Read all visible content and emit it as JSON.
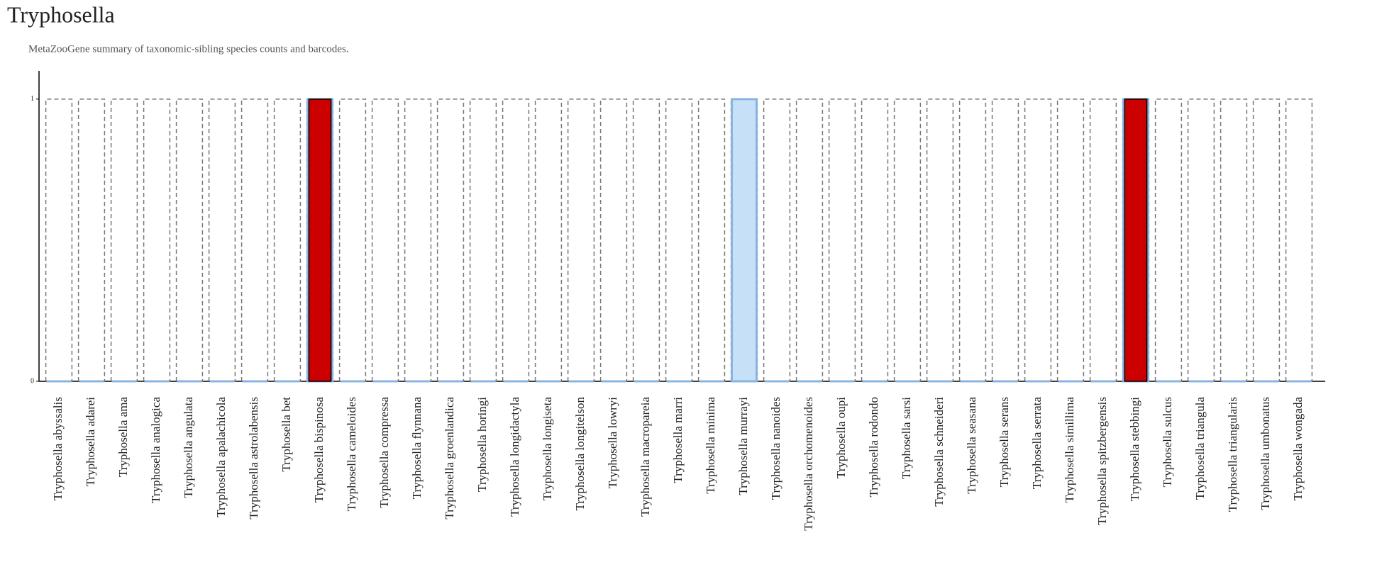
{
  "chart_data": {
    "type": "bar",
    "title": "Tryphosella",
    "subtitle": "MetaZooGene summary of taxonomic-sibling species counts and barcodes.",
    "categories": [
      "Tryphosella abyssalis",
      "Tryphosella adarei",
      "Tryphosella ama",
      "Tryphosella analogica",
      "Tryphosella angulata",
      "Tryphosella apalachicola",
      "Tryphosella astrolabensis",
      "Tryphosella bet",
      "Tryphosella bispinosa",
      "Tryphosella cameloides",
      "Tryphosella compressa",
      "Tryphosella flynnana",
      "Tryphosella groenlandica",
      "Tryphosella horingi",
      "Tryphosella longidactyla",
      "Tryphosella longiseta",
      "Tryphosella longitelson",
      "Tryphosella lowryi",
      "Tryphosella macropareia",
      "Tryphosella marri",
      "Tryphosella minima",
      "Tryphosella murrayi",
      "Tryphosella nanoides",
      "Tryphosella orchomenoides",
      "Tryphosella oupi",
      "Tryphosella rodondo",
      "Tryphosella sarsi",
      "Tryphosella schneideri",
      "Tryphosella seasana",
      "Tryphosella serans",
      "Tryphosella serrata",
      "Tryphosella simillima",
      "Tryphosella spitzbergensis",
      "Tryphosella stebbingi",
      "Tryphosella sulcus",
      "Tryphosella triangula",
      "Tryphosella triangularis",
      "Tryphosella umbonatus",
      "Tryphosella wongada"
    ],
    "series": [
      {
        "color": "#777777",
        "values": [
          1,
          1,
          1,
          1,
          1,
          1,
          1,
          1,
          1,
          1,
          1,
          1,
          1,
          1,
          1,
          1,
          1,
          1,
          1,
          1,
          1,
          1,
          1,
          1,
          1,
          1,
          1,
          1,
          1,
          1,
          1,
          1,
          1,
          1,
          1,
          1,
          1,
          1,
          1
        ]
      },
      {
        "color": "#c6e0f7",
        "values": [
          0,
          0,
          0,
          0,
          0,
          0,
          0,
          0,
          1,
          0,
          0,
          0,
          0,
          0,
          0,
          0,
          0,
          0,
          0,
          0,
          0,
          1,
          0,
          0,
          0,
          0,
          0,
          0,
          0,
          0,
          0,
          0,
          0,
          1,
          0,
          0,
          0,
          0,
          0
        ]
      },
      {
        "color": "#cc0000",
        "values": [
          0,
          0,
          0,
          0,
          0,
          0,
          0,
          0,
          1,
          0,
          0,
          0,
          0,
          0,
          0,
          0,
          0,
          0,
          0,
          0,
          0,
          0,
          0,
          0,
          0,
          0,
          0,
          0,
          0,
          0,
          0,
          0,
          0,
          1,
          0,
          0,
          0,
          0,
          0
        ]
      }
    ],
    "ylim": [
      0,
      1.1
    ],
    "yticks": [
      0,
      1
    ]
  }
}
